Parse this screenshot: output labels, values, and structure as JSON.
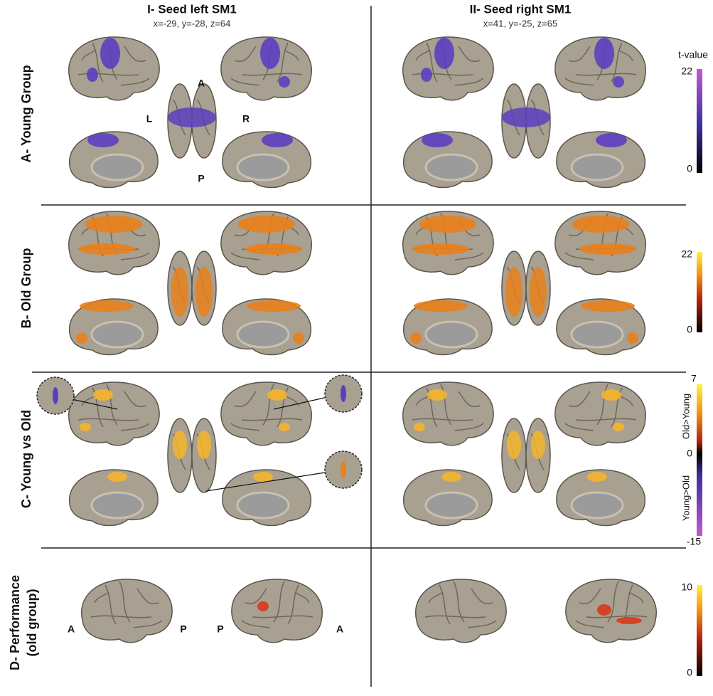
{
  "columns": [
    {
      "title": "I- Seed left SM1",
      "coords": "x=-29, y=-28, z=64"
    },
    {
      "title": "II- Seed right SM1",
      "coords": "x=41, y=-25, z=65"
    }
  ],
  "rows": [
    {
      "label": "A- Young Group",
      "colorbar": {
        "title": "t-value",
        "max": "22",
        "min": "0"
      },
      "orientation": [
        "A",
        "L",
        "R",
        "P"
      ]
    },
    {
      "label": "B- Old Group",
      "colorbar": {
        "max": "22",
        "min": "0"
      }
    },
    {
      "label": "C- Young vs Old",
      "colorbar": {
        "max": "7",
        "mid": "0",
        "min": "-15",
        "upper": "Old>Young",
        "lower": "Young>Old"
      }
    },
    {
      "label": [
        "D- Performance",
        "(old group)"
      ],
      "colorbar": {
        "max": "10",
        "min": "0"
      },
      "orientation": [
        "A",
        "P",
        "P",
        "A"
      ]
    }
  ]
}
